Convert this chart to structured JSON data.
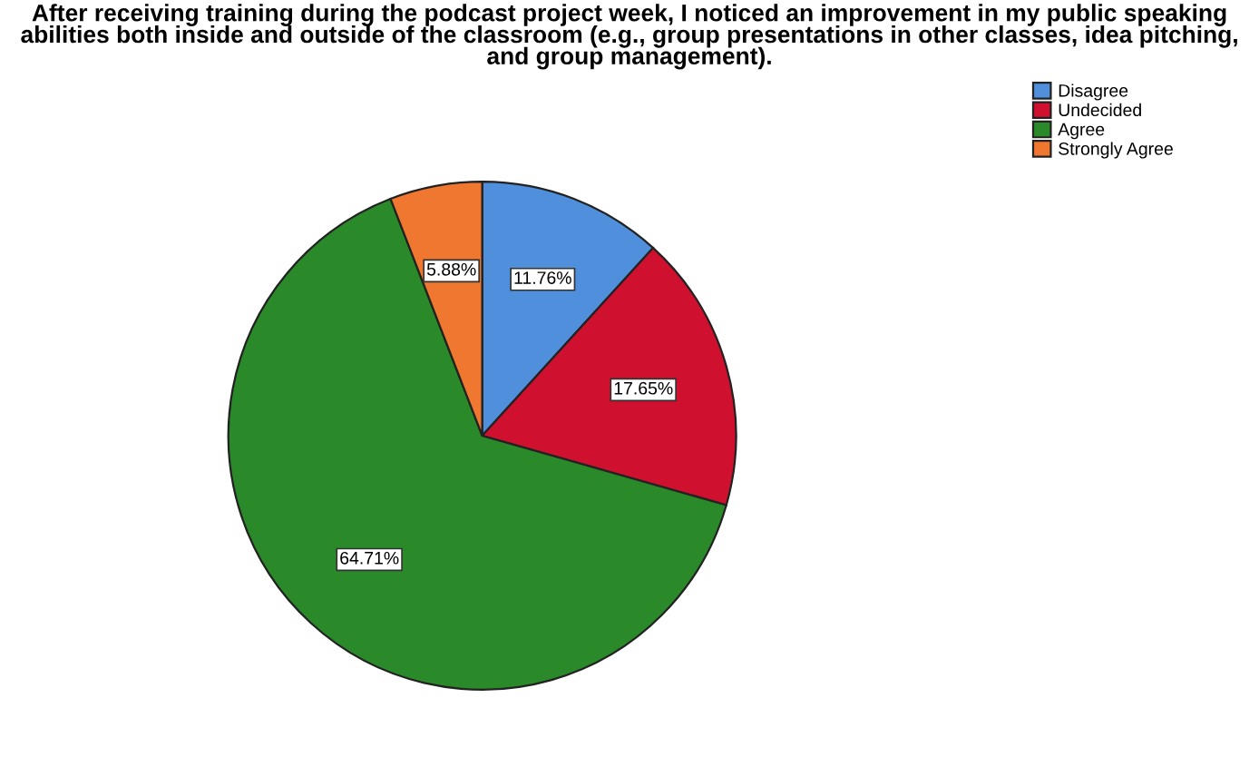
{
  "chart_data": {
    "type": "pie",
    "title": "After receiving training during the podcast project week, I noticed an improvement in my public speaking abilities both inside and outside of the classroom (e.g., group presentations in other classes, idea pitching, and group management).",
    "categories": [
      "Disagree",
      "Undecided",
      "Agree",
      "Strongly Agree"
    ],
    "values": [
      11.76,
      17.65,
      64.71,
      5.88
    ],
    "colors": [
      "#4f8fdb",
      "#d0102f",
      "#2a8a2a",
      "#f0772f"
    ],
    "value_labels": [
      "11.76%",
      "17.65%",
      "64.71%",
      "5.88%"
    ],
    "legend": "top right"
  }
}
